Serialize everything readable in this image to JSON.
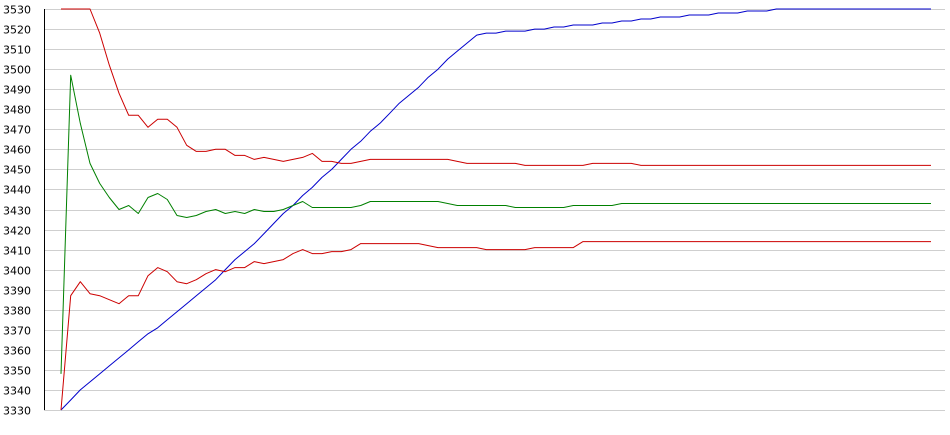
{
  "chart_data": {
    "type": "line",
    "title": "",
    "xlabel": "",
    "ylabel": "",
    "ylim": [
      3330,
      3530
    ],
    "yticks": [
      3330,
      3340,
      3350,
      3360,
      3370,
      3380,
      3390,
      3400,
      3410,
      3420,
      3430,
      3440,
      3450,
      3460,
      3470,
      3480,
      3490,
      3500,
      3510,
      3520,
      3530
    ],
    "grid": true,
    "legend": "none",
    "x": [
      0,
      1,
      2,
      3,
      4,
      5,
      6,
      7,
      8,
      9,
      10,
      11,
      12,
      13,
      14,
      15,
      16,
      17,
      18,
      19,
      20,
      21,
      22,
      23,
      24,
      25,
      26,
      27,
      28,
      29,
      30,
      31,
      32,
      33,
      34,
      35,
      36,
      37,
      38,
      39,
      40,
      41,
      42,
      43,
      44,
      45,
      46,
      47,
      48,
      49,
      50,
      51,
      52,
      53,
      54,
      55,
      56,
      57,
      58,
      59,
      60,
      61,
      62,
      63,
      64,
      65,
      66,
      67,
      68,
      69,
      70,
      71,
      72,
      73,
      74,
      75,
      76,
      77,
      78,
      79,
      80,
      81,
      82,
      83,
      84,
      85,
      86,
      87,
      88,
      89,
      90
    ],
    "series": [
      {
        "color": "#0000cc",
        "values": [
          3330,
          3335,
          3340,
          3344,
          3348,
          3352,
          3356,
          3360,
          3364,
          3368,
          3371,
          3375,
          3379,
          3383,
          3387,
          3391,
          3395,
          3400,
          3405,
          3409,
          3413,
          3418,
          3423,
          3428,
          3432,
          3437,
          3441,
          3446,
          3450,
          3455,
          3460,
          3464,
          3469,
          3473,
          3478,
          3483,
          3487,
          3491,
          3496,
          3500,
          3505,
          3509,
          3513,
          3517,
          3518,
          3518,
          3519,
          3519,
          3519,
          3520,
          3520,
          3521,
          3521,
          3522,
          3522,
          3522,
          3523,
          3523,
          3524,
          3524,
          3525,
          3525,
          3526,
          3526,
          3526,
          3527,
          3527,
          3527,
          3528,
          3528,
          3528,
          3529,
          3529,
          3529,
          3530,
          3530,
          3530,
          3530,
          3530,
          3530,
          3530,
          3530,
          3530,
          3530,
          3530,
          3530,
          3530,
          3530,
          3530,
          3530,
          3530
        ]
      },
      {
        "color": "#cc0000",
        "values": [
          3530,
          3530,
          3530,
          3530,
          3518,
          3502,
          3488,
          3477,
          3477,
          3471,
          3475,
          3475,
          3471,
          3462,
          3459,
          3459,
          3460,
          3460,
          3457,
          3457,
          3455,
          3456,
          3455,
          3454,
          3455,
          3456,
          3458,
          3454,
          3454,
          3453,
          3453,
          3454,
          3455,
          3455,
          3455,
          3455,
          3455,
          3455,
          3455,
          3455,
          3455,
          3454,
          3453,
          3453,
          3453,
          3453,
          3453,
          3453,
          3452,
          3452,
          3452,
          3452,
          3452,
          3452,
          3452,
          3453,
          3453,
          3453,
          3453,
          3453,
          3452,
          3452,
          3452,
          3452,
          3452,
          3452,
          3452,
          3452,
          3452,
          3452,
          3452,
          3452,
          3452,
          3452,
          3452,
          3452,
          3452,
          3452,
          3452,
          3452,
          3452,
          3452,
          3452,
          3452,
          3452,
          3452,
          3452,
          3452,
          3452,
          3452,
          3452
        ]
      },
      {
        "color": "#008000",
        "values": [
          3348,
          3497,
          3473,
          3453,
          3443,
          3436,
          3430,
          3432,
          3428,
          3436,
          3438,
          3435,
          3427,
          3426,
          3427,
          3429,
          3430,
          3428,
          3429,
          3428,
          3430,
          3429,
          3429,
          3430,
          3432,
          3434,
          3431,
          3431,
          3431,
          3431,
          3431,
          3432,
          3434,
          3434,
          3434,
          3434,
          3434,
          3434,
          3434,
          3434,
          3433,
          3432,
          3432,
          3432,
          3432,
          3432,
          3432,
          3431,
          3431,
          3431,
          3431,
          3431,
          3431,
          3432,
          3432,
          3432,
          3432,
          3432,
          3433,
          3433,
          3433,
          3433,
          3433,
          3433,
          3433,
          3433,
          3433,
          3433,
          3433,
          3433,
          3433,
          3433,
          3433,
          3433,
          3433,
          3433,
          3433,
          3433,
          3433,
          3433,
          3433,
          3433,
          3433,
          3433,
          3433,
          3433,
          3433,
          3433,
          3433,
          3433,
          3433
        ]
      },
      {
        "color": "#cc0000",
        "values": [
          3330,
          3387,
          3394,
          3388,
          3387,
          3385,
          3383,
          3387,
          3387,
          3397,
          3401,
          3399,
          3394,
          3393,
          3395,
          3398,
          3400,
          3399,
          3401,
          3401,
          3404,
          3403,
          3404,
          3405,
          3408,
          3410,
          3408,
          3408,
          3409,
          3409,
          3410,
          3413,
          3413,
          3413,
          3413,
          3413,
          3413,
          3413,
          3412,
          3411,
          3411,
          3411,
          3411,
          3411,
          3410,
          3410,
          3410,
          3410,
          3410,
          3411,
          3411,
          3411,
          3411,
          3411,
          3414,
          3414,
          3414,
          3414,
          3414,
          3414,
          3414,
          3414,
          3414,
          3414,
          3414,
          3414,
          3414,
          3414,
          3414,
          3414,
          3414,
          3414,
          3414,
          3414,
          3414,
          3414,
          3414,
          3414,
          3414,
          3414,
          3414,
          3414,
          3414,
          3414,
          3414,
          3414,
          3414,
          3414,
          3414,
          3414,
          3414
        ]
      }
    ]
  }
}
